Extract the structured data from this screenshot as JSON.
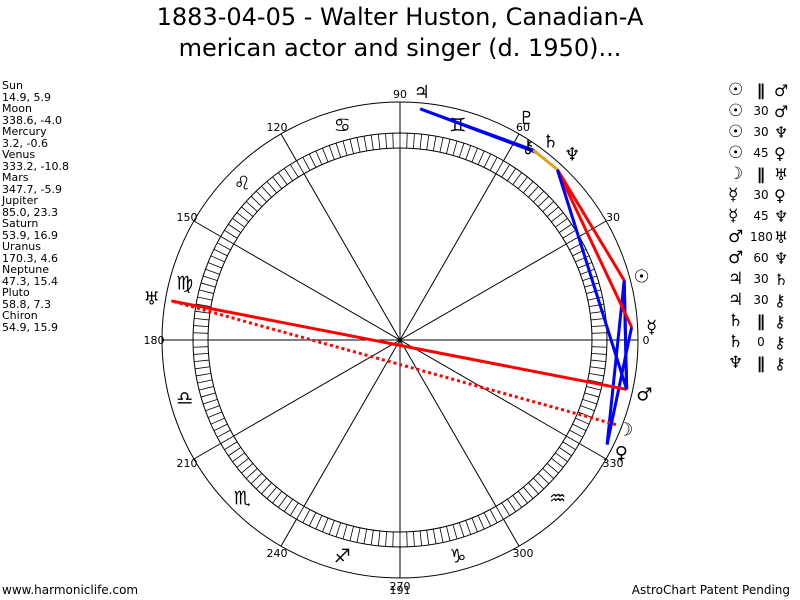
{
  "title": {
    "line1": "1883-04-05 - Walter Huston, Canadian-A",
    "line2": "merican actor and singer (d. 1950)..."
  },
  "planets": [
    {
      "name": "Sun",
      "value": "14.9, 5.9",
      "glyph": "☉"
    },
    {
      "name": "Moon",
      "value": "338.6, -4.0",
      "glyph": "☽"
    },
    {
      "name": "Mercury",
      "value": "3.2, -0.6",
      "glyph": "☿"
    },
    {
      "name": "Venus",
      "value": "333.2, -10.8",
      "glyph": "♀"
    },
    {
      "name": "Mars",
      "value": "347.7, -5.9",
      "glyph": "♂"
    },
    {
      "name": "Jupiter",
      "value": "85.0, 23.3",
      "glyph": "♃"
    },
    {
      "name": "Saturn",
      "value": "53.9, 16.9",
      "glyph": "♄"
    },
    {
      "name": "Uranus",
      "value": "170.3, 4.6",
      "glyph": "♅"
    },
    {
      "name": "Neptune",
      "value": "47.3, 15.4",
      "glyph": "♆"
    },
    {
      "name": "Pluto",
      "value": "58.8, 7.3",
      "glyph": "♇"
    },
    {
      "name": "Chiron",
      "value": "54.9, 15.9",
      "glyph": "⚷"
    }
  ],
  "wheel": {
    "degree_labels": [
      {
        "deg": 0,
        "label": "0"
      },
      {
        "deg": 30,
        "label": "30"
      },
      {
        "deg": 60,
        "label": "60"
      },
      {
        "deg": 90,
        "label": "90"
      },
      {
        "deg": 120,
        "label": "120"
      },
      {
        "deg": 150,
        "label": "150"
      },
      {
        "deg": 180,
        "label": "180"
      },
      {
        "deg": 210,
        "label": "210"
      },
      {
        "deg": 240,
        "label": "240"
      },
      {
        "deg": 270,
        "label": "270"
      },
      {
        "deg": 300,
        "label": "300"
      },
      {
        "deg": 330,
        "label": "330"
      }
    ],
    "zodiac_glyphs": [
      {
        "deg": 75,
        "glyph": "♊"
      },
      {
        "deg": 105,
        "glyph": "♋"
      },
      {
        "deg": 135,
        "glyph": "♌"
      },
      {
        "deg": 165,
        "glyph": "♍"
      },
      {
        "deg": 195,
        "glyph": "♎"
      },
      {
        "deg": 225,
        "glyph": "♏"
      },
      {
        "deg": 255,
        "glyph": "♐"
      },
      {
        "deg": 285,
        "glyph": "♑"
      },
      {
        "deg": 315,
        "glyph": "♒"
      }
    ],
    "bottom_value": "191",
    "colors": {
      "hard_aspect": "#ff0000",
      "soft_aspect": "#0000ff",
      "minor_aspect": "#e0a020"
    }
  },
  "aspects": [
    {
      "p1": "☉",
      "sym": "∥",
      "p2": "♂",
      "big": true,
      "from": 14.9,
      "to": 347.7,
      "color": "blue"
    },
    {
      "p1": "☉",
      "sym": "30",
      "p2": "♂",
      "big": false,
      "from": 14.9,
      "to": 347.7,
      "color": "blue"
    },
    {
      "p1": "☉",
      "sym": "30",
      "p2": "♆",
      "big": false,
      "from": 14.9,
      "to": 47.3,
      "color": "red"
    },
    {
      "p1": "☉",
      "sym": "45",
      "p2": "♀",
      "big": false,
      "from": 14.9,
      "to": 333.2,
      "color": "blue"
    },
    {
      "p1": "☽",
      "sym": "∥",
      "p2": "♅",
      "big": true,
      "from": 338.6,
      "to": 170.3,
      "color": "red-dashed"
    },
    {
      "p1": "☿",
      "sym": "30",
      "p2": "♀",
      "big": false,
      "from": 3.2,
      "to": 333.2,
      "color": "blue"
    },
    {
      "p1": "☿",
      "sym": "45",
      "p2": "♆",
      "big": false,
      "from": 3.2,
      "to": 47.3,
      "color": "red"
    },
    {
      "p1": "♂",
      "sym": "180",
      "p2": "♅",
      "big": false,
      "from": 347.7,
      "to": 170.3,
      "color": "red"
    },
    {
      "p1": "♂",
      "sym": "60",
      "p2": "♆",
      "big": false,
      "from": 347.7,
      "to": 47.3,
      "color": "blue"
    },
    {
      "p1": "♃",
      "sym": "30",
      "p2": "♄",
      "big": false,
      "from": 85.0,
      "to": 53.9,
      "color": "blue"
    },
    {
      "p1": "♃",
      "sym": "30",
      "p2": "⚷",
      "big": false,
      "from": 85.0,
      "to": 54.9,
      "color": "blue"
    },
    {
      "p1": "♄",
      "sym": "∥",
      "p2": "⚷",
      "big": true,
      "from": 53.9,
      "to": 54.9,
      "color": "minor"
    },
    {
      "p1": "♄",
      "sym": "0",
      "p2": "⚷",
      "big": false,
      "from": 53.9,
      "to": 54.9,
      "color": "minor"
    },
    {
      "p1": "♆",
      "sym": "∥",
      "p2": "⚷",
      "big": true,
      "from": 47.3,
      "to": 54.9,
      "color": "minor"
    }
  ],
  "footer": {
    "left": "www.harmoniclife.com",
    "right": "AstroChart Patent Pending"
  }
}
